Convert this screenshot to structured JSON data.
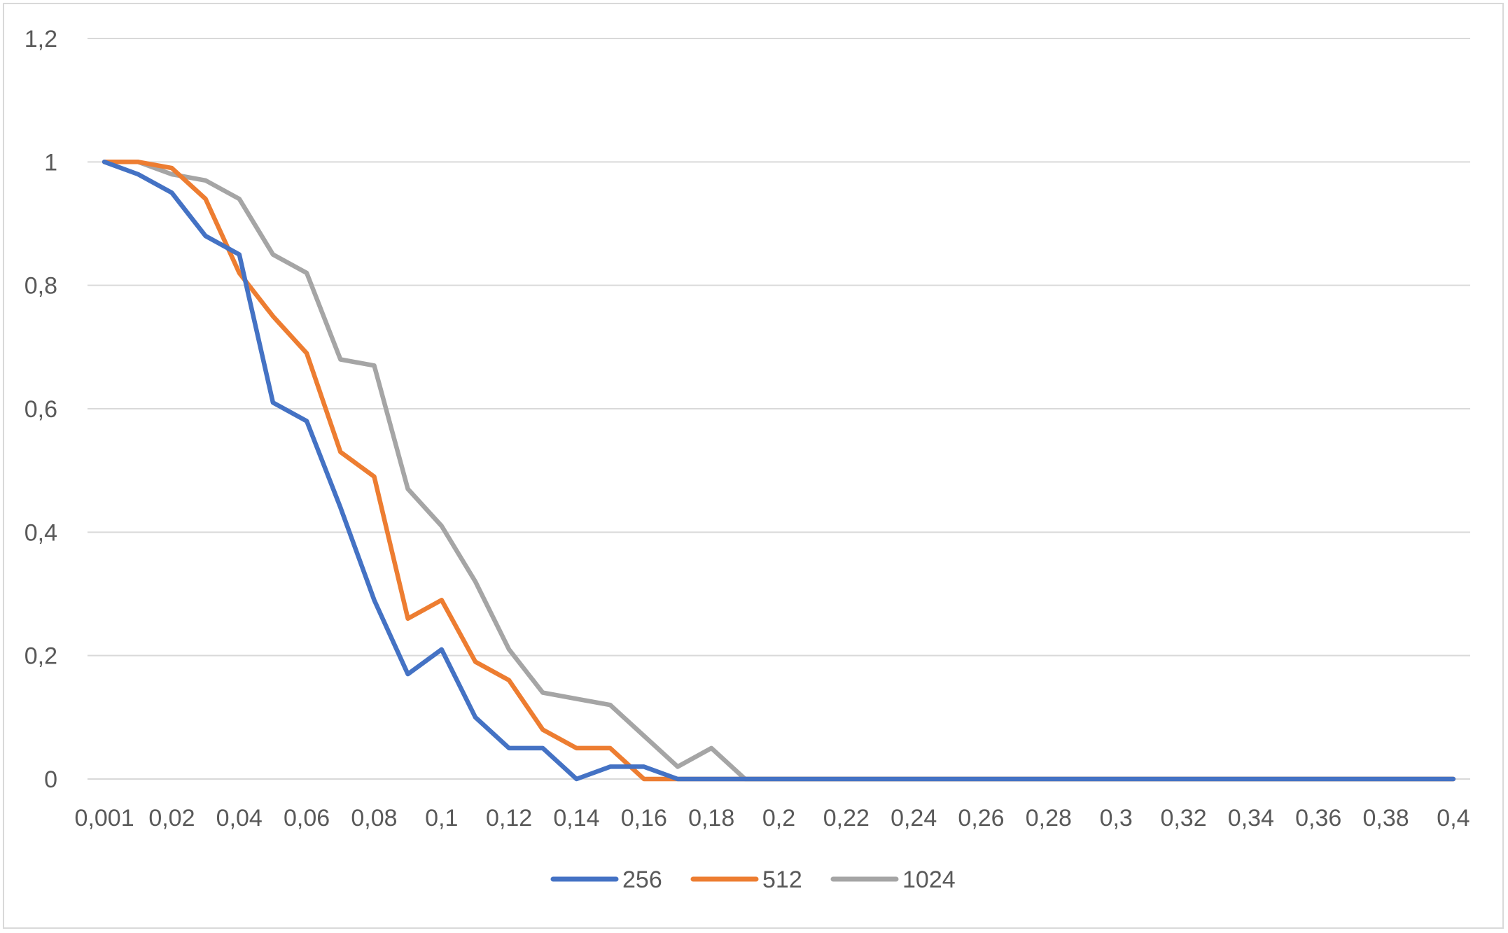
{
  "chart_data": {
    "type": "line",
    "title": "",
    "xlabel": "",
    "ylabel": "",
    "x": [
      "0,001",
      "0,01",
      "0,02",
      "0,03",
      "0,04",
      "0,05",
      "0,06",
      "0,07",
      "0,08",
      "0,09",
      "0,1",
      "0,11",
      "0,12",
      "0,13",
      "0,14",
      "0,15",
      "0,16",
      "0,17",
      "0,18",
      "0,19",
      "0,2",
      "0,21",
      "0,22",
      "0,23",
      "0,24",
      "0,25",
      "0,26",
      "0,27",
      "0,28",
      "0,29",
      "0,3",
      "0,31",
      "0,32",
      "0,33",
      "0,34",
      "0,35",
      "0,36",
      "0,37",
      "0,38",
      "0,39",
      "0,4"
    ],
    "x_tick_labels": [
      "0,001",
      "0,02",
      "0,04",
      "0,06",
      "0,08",
      "0,1",
      "0,12",
      "0,14",
      "0,16",
      "0,18",
      "0,2",
      "0,22",
      "0,24",
      "0,26",
      "0,28",
      "0,3",
      "0,32",
      "0,34",
      "0,36",
      "0,38",
      "0,4"
    ],
    "y_tick_labels": [
      "0",
      "0,2",
      "0,4",
      "0,6",
      "0,8",
      "1",
      "1,2"
    ],
    "ylim": [
      0,
      1.2
    ],
    "grid": true,
    "legend_position": "bottom",
    "series": [
      {
        "name": "256",
        "color": "#4472c4",
        "values": [
          1,
          0.98,
          0.95,
          0.88,
          0.85,
          0.61,
          0.58,
          0.44,
          0.29,
          0.17,
          0.21,
          0.1,
          0.05,
          0.05,
          0.0,
          0.02,
          0.02,
          0,
          0,
          0,
          0,
          0,
          0,
          0,
          0,
          0,
          0,
          0,
          0,
          0,
          0,
          0,
          0,
          0,
          0,
          0,
          0,
          0,
          0,
          0,
          0
        ]
      },
      {
        "name": "512",
        "color": "#ed7d31",
        "values": [
          1,
          1,
          0.99,
          0.94,
          0.82,
          0.75,
          0.69,
          0.53,
          0.49,
          0.26,
          0.29,
          0.19,
          0.16,
          0.08,
          0.05,
          0.05,
          0,
          0,
          0,
          0,
          0,
          0,
          0,
          0,
          0,
          0,
          0,
          0,
          0,
          0,
          0,
          0,
          0,
          0,
          0,
          0,
          0,
          0,
          0,
          0,
          0
        ]
      },
      {
        "name": "1024",
        "color": "#a5a5a5",
        "values": [
          1,
          1,
          0.98,
          0.97,
          0.94,
          0.85,
          0.82,
          0.68,
          0.67,
          0.47,
          0.41,
          0.32,
          0.21,
          0.14,
          0.13,
          0.12,
          0.07,
          0.02,
          0.05,
          0,
          0,
          0,
          0,
          0,
          0,
          0,
          0,
          0,
          0,
          0,
          0,
          0,
          0,
          0,
          0,
          0,
          0,
          0,
          0,
          0,
          0
        ]
      }
    ]
  }
}
